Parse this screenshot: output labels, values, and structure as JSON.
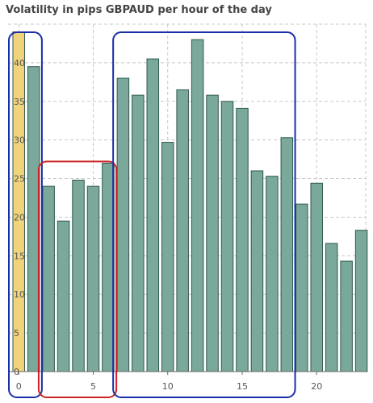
{
  "title": "Volatility in pips GBPAUD per hour of the day",
  "chart_data": {
    "type": "bar",
    "title": "Volatility in pips GBPAUD per hour of the day",
    "categories": [
      0,
      1,
      2,
      3,
      4,
      5,
      6,
      7,
      8,
      9,
      10,
      11,
      12,
      13,
      14,
      15,
      16,
      17,
      18,
      19,
      20,
      21,
      22,
      23
    ],
    "values": [
      44,
      39.5,
      24,
      19.5,
      24.8,
      24,
      27,
      38,
      35.8,
      40.5,
      29.7,
      36.5,
      43,
      35.8,
      35,
      34.1,
      26,
      25.3,
      30.3,
      21.7,
      24.4,
      16.6,
      14.3,
      18.3
    ],
    "xlabel": "",
    "ylabel": "",
    "ylim": [
      0,
      45
    ],
    "xticks": [
      0,
      5,
      10,
      15,
      20
    ],
    "yticks": [
      0,
      5,
      10,
      15,
      20,
      25,
      30,
      35,
      40
    ],
    "grid": true,
    "bar_color": "#7aa89a",
    "bar_edge_color": "#2f5a4f",
    "highlight_color": "#f0d37a",
    "highlight_category": 0,
    "annotations": [
      {
        "type": "rounded-box",
        "color": "#1a2ea8",
        "from_category": 0,
        "to_category": 1
      },
      {
        "type": "rounded-box",
        "color": "#cc2222",
        "from_category": 2,
        "to_category": 6
      },
      {
        "type": "rounded-box",
        "color": "#1a2ea8",
        "from_category": 7,
        "to_category": 18
      }
    ]
  }
}
